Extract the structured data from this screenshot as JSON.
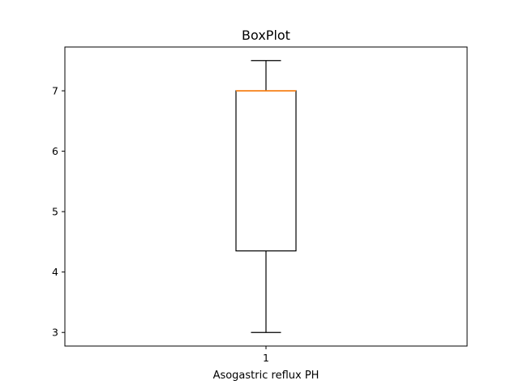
{
  "chart_data": {
    "type": "box",
    "title": "BoxPlot",
    "xlabel": "Asogastric reflux PH",
    "ylabel": "",
    "categories": [
      "1"
    ],
    "ylim": [
      2.775,
      7.725
    ],
    "yticks": [
      3,
      4,
      5,
      6,
      7
    ],
    "grid": false,
    "series": [
      {
        "whisker_low": 3.0,
        "q1": 4.35,
        "median": 7.0,
        "q3": 7.0,
        "whisker_high": 7.5
      }
    ],
    "colors": {
      "median": "#ff7f0e",
      "box": "#000000"
    }
  }
}
